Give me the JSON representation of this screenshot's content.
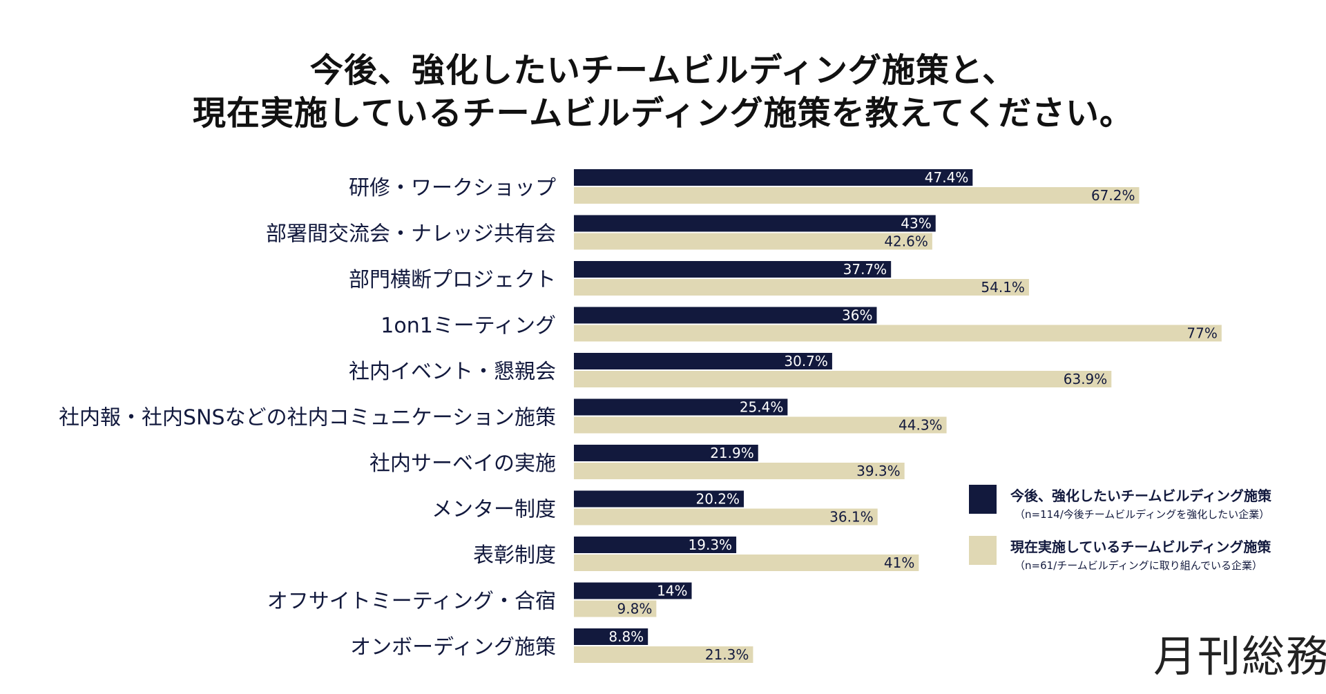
{
  "title_line1": "今後、強化したいチームビルディング施策と、",
  "title_line2": "現在実施しているチームビルディング施策を教えてください。",
  "colors": {
    "series1": "#12193d",
    "series2": "#e0d8b4"
  },
  "legend": {
    "series1_name": "今後、強化したいチームビルディング施策",
    "series1_note": "（n=114/今後チームビルディングを強化したい企業）",
    "series2_name": "現在実施しているチームビルディング施策",
    "series2_note": "（n=61/チームビルディングに取り組んでいる企業）"
  },
  "logo": "月刊総務",
  "chart_data": {
    "type": "bar",
    "orientation": "horizontal",
    "categories": [
      "研修・ワークショップ",
      "部署間交流会・ナレッジ共有会",
      "部門横断プロジェクト",
      "1on1ミーティング",
      "社内イベント・懇親会",
      "社内報・社内SNSなどの社内コミュニケーション施策",
      "社内サーベイの実施",
      "メンター制度",
      "表彰制度",
      "オフサイトミーティング・合宿",
      "オンボーディング施策"
    ],
    "series": [
      {
        "name": "今後、強化したいチームビルディング施策",
        "values": [
          47.4,
          43,
          37.7,
          36,
          30.7,
          25.4,
          21.9,
          20.2,
          19.3,
          14,
          8.8
        ],
        "labels": [
          "47.4%",
          "43%",
          "37.7%",
          "36%",
          "30.7%",
          "25.4%",
          "21.9%",
          "20.2%",
          "19.3%",
          "14%",
          "8.8%"
        ]
      },
      {
        "name": "現在実施しているチームビルディング施策",
        "values": [
          67.2,
          42.6,
          54.1,
          77,
          63.9,
          44.3,
          39.3,
          36.1,
          41,
          9.8,
          21.3
        ],
        "labels": [
          "67.2%",
          "42.6%",
          "54.1%",
          "77%",
          "63.9%",
          "44.3%",
          "39.3%",
          "36.1%",
          "41%",
          "9.8%",
          "21.3%"
        ]
      }
    ],
    "xlim": [
      0,
      100
    ],
    "grid": false,
    "legend_position": "bottom-right"
  }
}
